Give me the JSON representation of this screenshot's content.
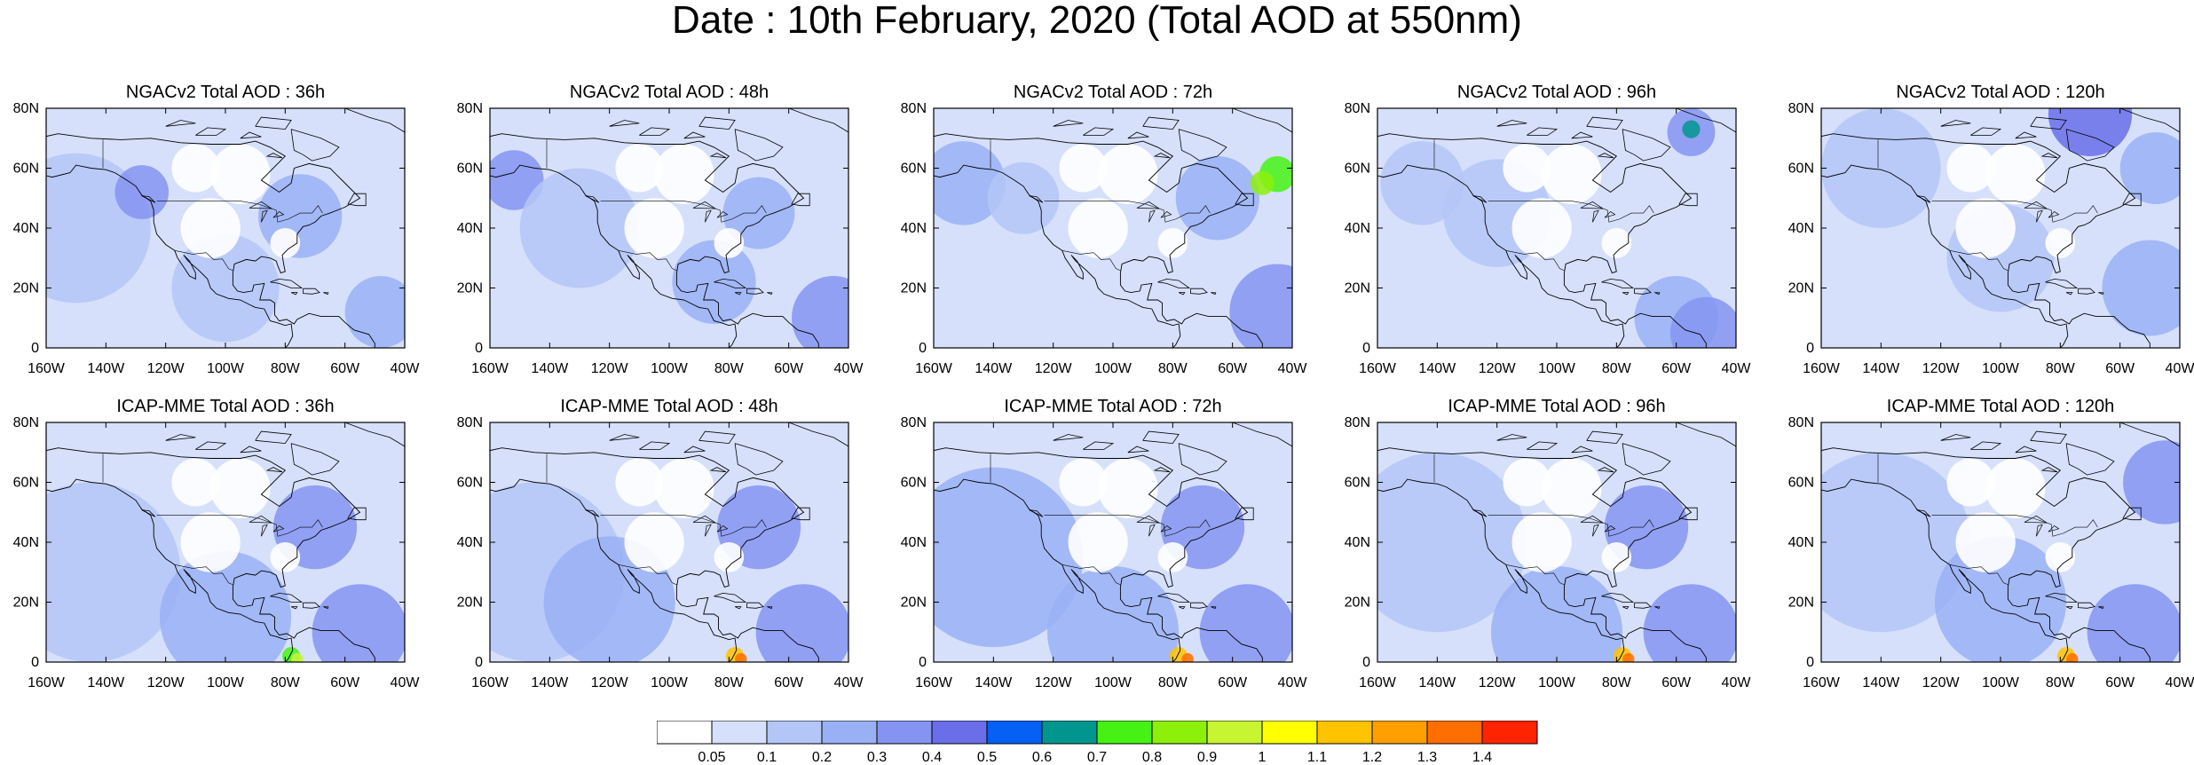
{
  "title": "Date : 10th February, 2020 (Total AOD at 550nm)",
  "colors": {
    "water_light": "#d6e0fb",
    "coast": "#000000",
    "grid_frame": "#000000"
  },
  "axes": {
    "lat_ticks": [
      "80N",
      "60N",
      "40N",
      "20N",
      "0"
    ],
    "lon_ticks": [
      "160W",
      "140W",
      "120W",
      "100W",
      "80W",
      "60W",
      "40W"
    ],
    "lat_range": [
      0,
      80
    ],
    "lon_range": [
      -160,
      -40
    ]
  },
  "panels": [
    {
      "title": "NGACv2 Total AOD : 36h"
    },
    {
      "title": "NGACv2 Total AOD : 48h"
    },
    {
      "title": "NGACv2 Total AOD : 72h"
    },
    {
      "title": "NGACv2 Total AOD : 96h"
    },
    {
      "title": "NGACv2 Total AOD : 120h"
    },
    {
      "title": "ICAP-MME Total AOD : 36h"
    },
    {
      "title": "ICAP-MME Total AOD : 48h"
    },
    {
      "title": "ICAP-MME Total AOD : 72h"
    },
    {
      "title": "ICAP-MME Total AOD : 96h"
    },
    {
      "title": "ICAP-MME Total AOD : 120h"
    }
  ],
  "colorbar": {
    "labels": [
      "0.05",
      "0.1",
      "0.2",
      "0.3",
      "0.4",
      "0.5",
      "0.6",
      "0.7",
      "0.8",
      "0.9",
      "1",
      "1.1",
      "1.2",
      "1.3",
      "1.4"
    ],
    "colors": [
      "#ffffff",
      "#d6e0fb",
      "#b4c6f7",
      "#9ab0f4",
      "#8594f1",
      "#6a6ee8",
      "#0560f4",
      "#00968e",
      "#46f214",
      "#8cf00a",
      "#c8f532",
      "#ffff00",
      "#ffc300",
      "#ffa000",
      "#ff6e00",
      "#ff2400"
    ]
  }
}
